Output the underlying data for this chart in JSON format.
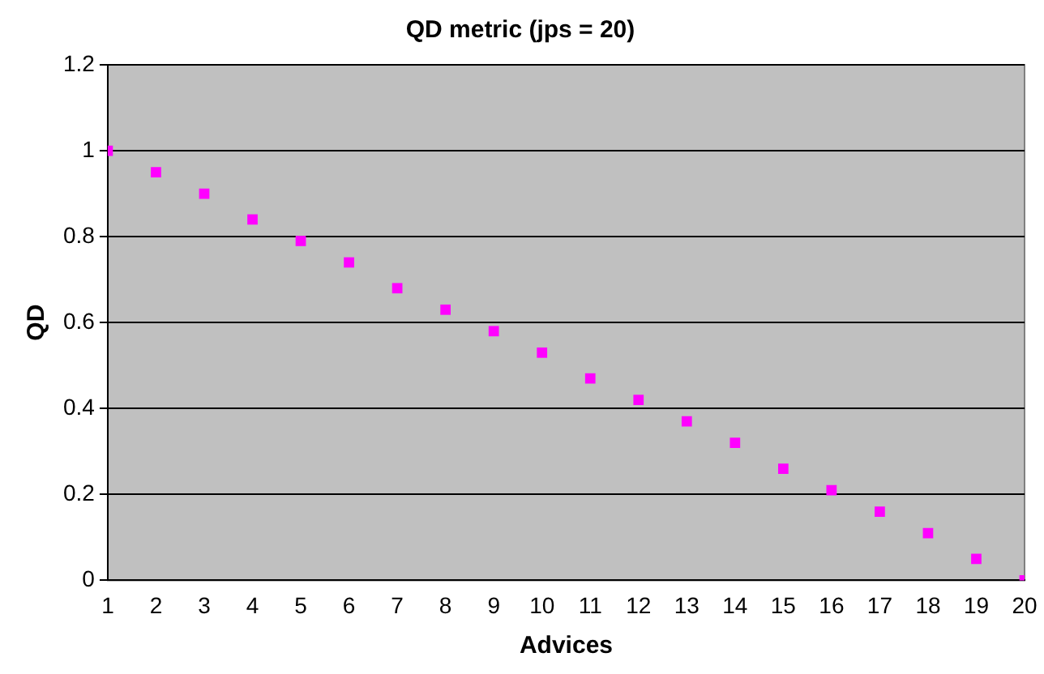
{
  "chart_data": {
    "type": "scatter",
    "title": "QD metric (jps = 20)",
    "xlabel": "Advices",
    "ylabel": "QD",
    "x": [
      1,
      2,
      3,
      4,
      5,
      6,
      7,
      8,
      9,
      10,
      11,
      12,
      13,
      14,
      15,
      16,
      17,
      18,
      19,
      20
    ],
    "series": [
      {
        "color": "#ff00ff",
        "values": [
          1,
          0.95,
          0.9,
          0.84,
          0.79,
          0.74,
          0.68,
          0.63,
          0.58,
          0.53,
          0.47,
          0.42,
          0.37,
          0.32,
          0.26,
          0.21,
          0.16,
          0.11,
          0.05,
          0
        ]
      }
    ],
    "xlim": [
      1,
      20
    ],
    "xticks": [
      1,
      2,
      3,
      4,
      5,
      6,
      7,
      8,
      9,
      10,
      11,
      12,
      13,
      14,
      15,
      16,
      17,
      18,
      19,
      20
    ],
    "ylim": [
      0,
      1.2
    ],
    "yticks": [
      0,
      0.2,
      0.4,
      0.6,
      0.8,
      1,
      1.2
    ],
    "grid": "y",
    "legend": false,
    "marker": "square"
  }
}
